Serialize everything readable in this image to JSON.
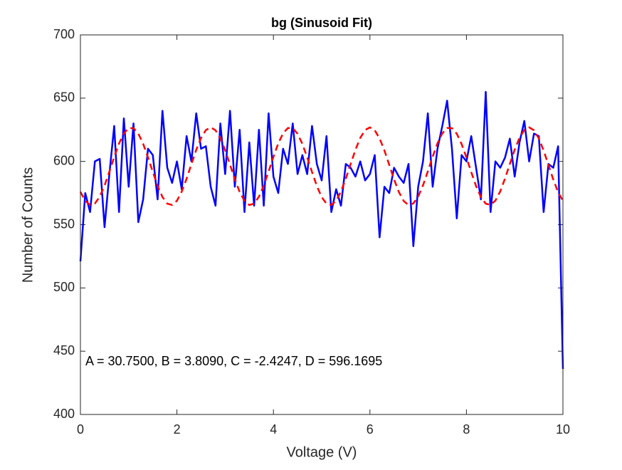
{
  "chart_data": {
    "type": "line",
    "title": "bg (Sinusoid Fit)",
    "xlabel": "Voltage (V)",
    "ylabel": "Number of Counts",
    "annotation": "A = 30.7500, B = 3.8090, C = -2.4247, D = 596.1695",
    "x": [
      0,
      0.1,
      0.2,
      0.3,
      0.4,
      0.5,
      0.6,
      0.7,
      0.8,
      0.9,
      1,
      1.1,
      1.2,
      1.3,
      1.4,
      1.5,
      1.6,
      1.7,
      1.8,
      1.9,
      2,
      2.1,
      2.2,
      2.3,
      2.4,
      2.5,
      2.6,
      2.7,
      2.8,
      2.9,
      3,
      3.1,
      3.2,
      3.3,
      3.4,
      3.5,
      3.6,
      3.7,
      3.8,
      3.9,
      4,
      4.1,
      4.2,
      4.3,
      4.4,
      4.5,
      4.6,
      4.7,
      4.8,
      4.9,
      5,
      5.1,
      5.2,
      5.3,
      5.4,
      5.5,
      5.6,
      5.7,
      5.8,
      5.9,
      6,
      6.1,
      6.2,
      6.3,
      6.4,
      6.5,
      6.6,
      6.7,
      6.8,
      6.9,
      7,
      7.1,
      7.2,
      7.3,
      7.4,
      7.5,
      7.6,
      7.7,
      7.8,
      7.9,
      8,
      8.1,
      8.2,
      8.3,
      8.4,
      8.5,
      8.6,
      8.7,
      8.8,
      8.9,
      9,
      9.1,
      9.2,
      9.3,
      9.4,
      9.5,
      9.6,
      9.7,
      9.8,
      9.9,
      10
    ],
    "series": [
      {
        "color": "#0000ff",
        "dash": false,
        "values": [
          521,
          575,
          560,
          600,
          602,
          548,
          590,
          628,
          560,
          634,
          580,
          630,
          552,
          570,
          610,
          605,
          570,
          640,
          595,
          583,
          600,
          578,
          620,
          600,
          638,
          610,
          612,
          580,
          565,
          630,
          590,
          640,
          580,
          625,
          560,
          615,
          565,
          625,
          565,
          638,
          588,
          575,
          610,
          598,
          630,
          590,
          605,
          590,
          628,
          598,
          585,
          620,
          560,
          578,
          565,
          598,
          595,
          588,
          600,
          585,
          590,
          605,
          540,
          580,
          575,
          595,
          588,
          583,
          598,
          533,
          580,
          600,
          638,
          580,
          610,
          628,
          648,
          610,
          555,
          605,
          600,
          620,
          595,
          570,
          655,
          560,
          600,
          595,
          603,
          618,
          588,
          615,
          632,
          600,
          622,
          620,
          560,
          598,
          595,
          612,
          436
        ]
      },
      {
        "color": "#ff0000",
        "dash": true,
        "values": [
          576.0,
          568.8,
          565.6,
          566.7,
          572.1,
          580.9,
          591.9,
          603.5,
          614.1,
          622.1,
          626.4,
          626.3,
          622.0,
          613.9,
          603.3,
          591.7,
          580.7,
          571.9,
          566.6,
          565.6,
          568.9,
          576.2,
          586.3,
          597.8,
          609.1,
          618.5,
          624.8,
          626.9,
          624.6,
          618.3,
          608.8,
          597.4,
          585.9,
          575.9,
          568.8,
          565.5,
          566.7,
          572.1,
          581.0,
          592.0,
          603.6,
          614.2,
          622.2,
          626.4,
          626.3,
          621.9,
          613.8,
          603.2,
          591.6,
          580.6,
          571.8,
          566.6,
          565.6,
          568.9,
          576.2,
          586.4,
          597.9,
          609.2,
          618.6,
          624.8,
          626.9,
          624.6,
          618.2,
          608.7,
          597.3,
          585.8,
          575.8,
          568.7,
          565.5,
          566.8,
          572.2,
          581.1,
          592.1,
          603.7,
          614.3,
          622.2,
          626.4,
          626.3,
          621.9,
          613.7,
          603.1,
          591.5,
          580.5,
          571.8,
          566.6,
          565.6,
          569.0,
          576.3,
          586.5,
          598.0,
          609.3,
          618.7,
          624.9,
          626.9,
          624.6,
          618.2,
          608.6,
          597.2,
          585.7,
          575.7,
          568.7
        ]
      }
    ],
    "xlim": [
      0,
      10
    ],
    "xticks": [
      0,
      2,
      4,
      6,
      8,
      10
    ],
    "ylim": [
      400,
      700
    ],
    "yticks": [
      400,
      450,
      500,
      550,
      600,
      650,
      700
    ],
    "grid": false
  }
}
